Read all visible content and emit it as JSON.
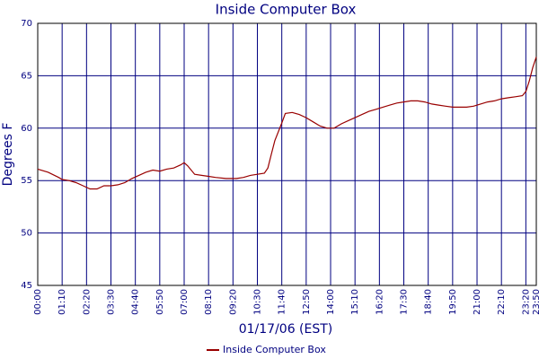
{
  "chart_data": {
    "type": "line",
    "title": "Inside Computer Box",
    "xlabel": "01/17/06 (EST)",
    "ylabel": "Degrees F",
    "x": [
      "00:00",
      "00:30",
      "01:00",
      "01:10",
      "01:30",
      "01:50",
      "02:10",
      "02:30",
      "02:50",
      "03:10",
      "03:30",
      "03:50",
      "04:10",
      "04:30",
      "04:50",
      "05:10",
      "05:30",
      "05:50",
      "06:10",
      "06:30",
      "06:50",
      "07:00",
      "07:10",
      "07:30",
      "07:50",
      "08:10",
      "08:30",
      "09:00",
      "09:30",
      "09:50",
      "10:10",
      "10:30",
      "10:50",
      "11:00",
      "11:10",
      "11:20",
      "11:40",
      "11:50",
      "12:10",
      "12:30",
      "12:50",
      "13:10",
      "13:30",
      "13:50",
      "14:10",
      "14:30",
      "14:50",
      "15:10",
      "15:30",
      "15:50",
      "16:10",
      "16:30",
      "16:50",
      "17:10",
      "17:30",
      "17:50",
      "18:10",
      "18:30",
      "18:50",
      "19:10",
      "19:30",
      "19:50",
      "20:10",
      "20:30",
      "20:50",
      "21:10",
      "21:30",
      "21:50",
      "22:10",
      "22:30",
      "22:50",
      "23:10",
      "23:20",
      "23:30",
      "23:40",
      "23:50"
    ],
    "series": [
      {
        "name": "Inside Computer Box",
        "color": "#990000",
        "values": [
          56.1,
          55.8,
          55.3,
          55.1,
          55.0,
          54.8,
          54.5,
          54.2,
          54.2,
          54.5,
          54.5,
          54.6,
          54.8,
          55.2,
          55.5,
          55.8,
          56.0,
          55.9,
          56.1,
          56.2,
          56.5,
          56.7,
          56.4,
          55.6,
          55.5,
          55.4,
          55.3,
          55.2,
          55.2,
          55.3,
          55.5,
          55.6,
          55.7,
          56.2,
          57.5,
          58.8,
          60.5,
          61.4,
          61.5,
          61.3,
          61.0,
          60.6,
          60.2,
          60.0,
          60.0,
          60.4,
          60.7,
          61.0,
          61.3,
          61.6,
          61.8,
          62.0,
          62.2,
          62.4,
          62.5,
          62.6,
          62.6,
          62.5,
          62.3,
          62.2,
          62.1,
          62.0,
          62.0,
          62.0,
          62.1,
          62.3,
          62.5,
          62.6,
          62.8,
          62.9,
          63.0,
          63.1,
          63.5,
          64.5,
          65.8,
          66.8
        ]
      }
    ],
    "xlim": [
      "00:00",
      "23:50"
    ],
    "xticks": [
      "00:00",
      "01:10",
      "02:20",
      "03:30",
      "04:40",
      "05:50",
      "07:00",
      "08:10",
      "09:20",
      "10:30",
      "11:40",
      "12:50",
      "14:00",
      "15:10",
      "16:20",
      "17:30",
      "18:40",
      "19:50",
      "21:00",
      "22:10",
      "23:20",
      "23:50"
    ],
    "ylim": [
      45,
      70
    ],
    "yticks": [
      45,
      50,
      55,
      60,
      65,
      70
    ],
    "grid": true
  }
}
